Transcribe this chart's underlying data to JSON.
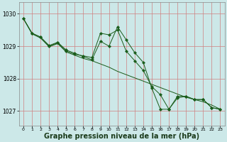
{
  "bg_color": "#cce8e8",
  "grid_color": "#d08080",
  "line_color": "#1a5c1a",
  "marker_color": "#1a5c1a",
  "xlabel": "Graphe pression niveau de la mer (hPa)",
  "xlabel_fontsize": 7.0,
  "xlim": [
    -0.5,
    23.5
  ],
  "ylim": [
    1026.55,
    1030.35
  ],
  "yticks": [
    1027,
    1028,
    1029,
    1030
  ],
  "xticks": [
    0,
    1,
    2,
    3,
    4,
    5,
    6,
    7,
    8,
    9,
    10,
    11,
    12,
    13,
    14,
    15,
    16,
    17,
    18,
    19,
    20,
    21,
    22,
    23
  ],
  "series": [
    [
      1029.85,
      1029.4,
      1029.28,
      1029.0,
      1029.1,
      1028.85,
      1028.75,
      1028.7,
      1028.65,
      1029.4,
      1029.35,
      1029.5,
      1028.85,
      1028.55,
      1028.25,
      1027.75,
      1027.5,
      1027.05,
      1027.45,
      1027.45,
      1027.35,
      1027.35,
      1027.1,
      1027.05
    ],
    [
      1029.85,
      1029.38,
      1029.25,
      1028.98,
      1029.08,
      1028.82,
      1028.72,
      1028.62,
      1028.55,
      1028.45,
      1028.35,
      1028.22,
      1028.12,
      1028.02,
      1027.92,
      1027.82,
      1027.72,
      1027.62,
      1027.52,
      1027.42,
      1027.35,
      1027.28,
      1027.18,
      1027.05
    ],
    [
      1029.85,
      1029.4,
      1029.28,
      1029.02,
      1029.12,
      1028.88,
      1028.78,
      1028.68,
      1028.58,
      1029.15,
      1029.0,
      1029.6,
      1029.2,
      1028.8,
      1028.5,
      1027.7,
      1027.05,
      1027.05,
      1027.4,
      1027.45,
      1027.35,
      1027.35,
      1027.1,
      1027.05
    ]
  ]
}
